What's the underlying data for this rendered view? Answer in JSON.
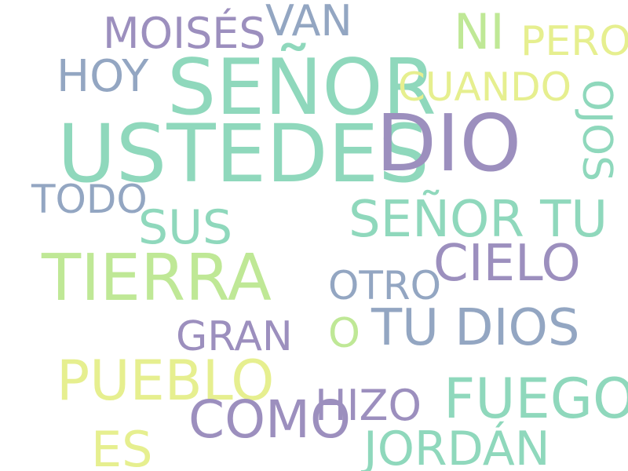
{
  "wordcloud": {
    "palette": {
      "purple": "#9c8fbe",
      "green": "#8fd8bc",
      "slate": "#93a6c2",
      "lime": "#bfe896",
      "yellow": "#e6ef8f"
    },
    "words": [
      {
        "text": "SEÑOR",
        "color": "#8fd8bc",
        "rotation": "horizontal"
      },
      {
        "text": "USTEDES",
        "color": "#8fd8bc",
        "rotation": "horizontal"
      },
      {
        "text": "DIO",
        "color": "#9c8fbe",
        "rotation": "horizontal"
      },
      {
        "text": "TIERRA",
        "color": "#bfe896",
        "rotation": "horizontal"
      },
      {
        "text": "MOISÉS",
        "color": "#9c8fbe",
        "rotation": "horizontal"
      },
      {
        "text": "VAN",
        "color": "#93a6c2",
        "rotation": "horizontal"
      },
      {
        "text": "NI",
        "color": "#bfe896",
        "rotation": "horizontal"
      },
      {
        "text": "PERO",
        "color": "#e6ef8f",
        "rotation": "horizontal"
      },
      {
        "text": "HOY",
        "color": "#93a6c2",
        "rotation": "horizontal"
      },
      {
        "text": "CUANDO",
        "color": "#e6ef8f",
        "rotation": "horizontal"
      },
      {
        "text": "OJOS",
        "color": "#8fd8bc",
        "rotation": "vertical"
      },
      {
        "text": "TODO",
        "color": "#93a6c2",
        "rotation": "horizontal"
      },
      {
        "text": "SUS",
        "color": "#8fd8bc",
        "rotation": "horizontal"
      },
      {
        "text": "SEÑOR TU",
        "color": "#8fd8bc",
        "rotation": "horizontal"
      },
      {
        "text": "CIELO",
        "color": "#9c8fbe",
        "rotation": "horizontal"
      },
      {
        "text": "OTRO",
        "color": "#93a6c2",
        "rotation": "horizontal"
      },
      {
        "text": "GRAN",
        "color": "#9c8fbe",
        "rotation": "horizontal"
      },
      {
        "text": "O",
        "color": "#bfe896",
        "rotation": "horizontal"
      },
      {
        "text": "TU DIOS",
        "color": "#93a6c2",
        "rotation": "horizontal"
      },
      {
        "text": "PUEBLO",
        "color": "#e6ef8f",
        "rotation": "horizontal"
      },
      {
        "text": "COMO",
        "color": "#9c8fbe",
        "rotation": "horizontal"
      },
      {
        "text": "HIZO",
        "color": "#9c8fbe",
        "rotation": "horizontal"
      },
      {
        "text": "FUEGO",
        "color": "#8fd8bc",
        "rotation": "horizontal"
      },
      {
        "text": "ES",
        "color": "#e6ef8f",
        "rotation": "horizontal"
      },
      {
        "text": "JORDÁN",
        "color": "#8fd8bc",
        "rotation": "horizontal"
      }
    ]
  }
}
